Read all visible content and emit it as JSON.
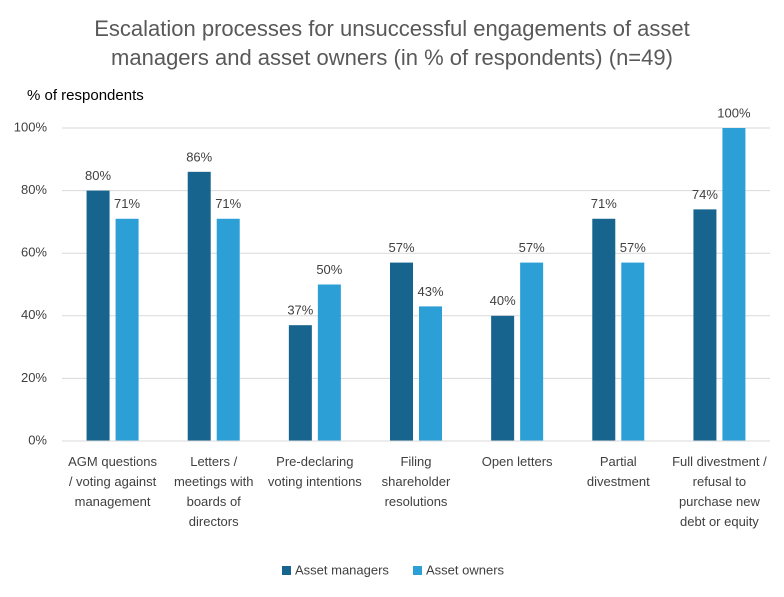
{
  "chart_data": {
    "type": "bar",
    "title": "Escalation processes for unsuccessful engagements of asset managers and asset owners (in % of respondents) (n=49)",
    "y_label": "% of respondents",
    "categories": [
      "AGM questions / voting against management",
      "Letters / meetings with boards of directors",
      "Pre-declaring voting intentions",
      "Filing shareholder resolutions",
      "Open letters",
      "Partial divestment",
      "Full divestment / refusal to purchase new debt or equity"
    ],
    "series": [
      {
        "name": "Asset managers",
        "color": "#17648f",
        "values": [
          80,
          86,
          37,
          57,
          40,
          71,
          74
        ],
        "value_labels": [
          "80%",
          "86%",
          "37%",
          "57%",
          "40%",
          "71%",
          "74%"
        ]
      },
      {
        "name": "Asset owners",
        "color": "#2b9fd6",
        "values": [
          71,
          71,
          50,
          43,
          57,
          57,
          100
        ],
        "value_labels": [
          "71%",
          "71%",
          "50%",
          "43%",
          "57%",
          "57%",
          "100%"
        ]
      }
    ],
    "ylim": [
      0,
      100
    ],
    "yticks": [
      {
        "value": 0,
        "label": "0%"
      },
      {
        "value": 20,
        "label": "20%"
      },
      {
        "value": 40,
        "label": "40%"
      },
      {
        "value": 60,
        "label": "60%"
      },
      {
        "value": 80,
        "label": "80%"
      },
      {
        "value": 100,
        "label": "100%"
      }
    ],
    "grid": true
  }
}
